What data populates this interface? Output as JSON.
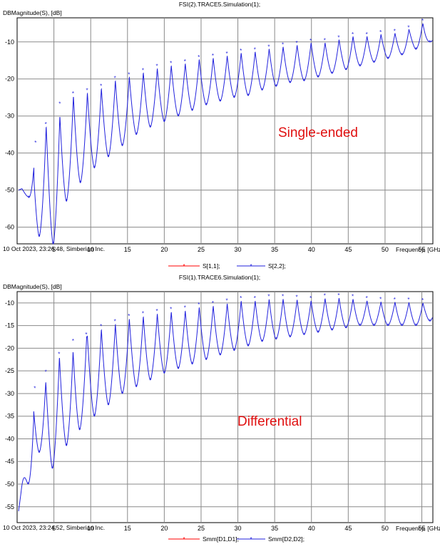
{
  "chart_data": [
    {
      "type": "line",
      "title": "FSI(2).TRACE5.Simulation(1);",
      "ylabel": "DBMagnitude(S), [dB]",
      "xlabel": "Frequency, [GHz]",
      "footer": "10 Oct 2023, 23:26:48, Simberian Inc.",
      "annotation": "Single-ended",
      "xlim": [
        0,
        56.5
      ],
      "ylim": [
        -64.5,
        -3.5
      ],
      "xticks": [
        "5",
        "10",
        "15",
        "20",
        "25",
        "30",
        "35",
        "40",
        "45",
        "50",
        "55"
      ],
      "yticks": [
        "-10",
        "-20",
        "-30",
        "-40",
        "-50",
        "-60"
      ],
      "grid": true,
      "legend_position": "bottom-center",
      "colors": {
        "s11": "#ff0000",
        "s22": "#2222dd"
      },
      "envelope": {
        "x": [
          0.2,
          1.3,
          2.2,
          3.2,
          4.3,
          5.4,
          6.5,
          7.6,
          8.7,
          9.8,
          11,
          13,
          15,
          17.5,
          20,
          22.5,
          25,
          27.5,
          30,
          32.5,
          35,
          37.5,
          40,
          42.5,
          45,
          47.5,
          50,
          52.5,
          55,
          56
        ],
        "values": [
          -50,
          -49,
          -38.5,
          -36,
          -31,
          -27.5,
          -27,
          -24.5,
          -24,
          -23.5,
          -23,
          -20.5,
          -19.5,
          -18,
          -16.5,
          -16,
          -14.5,
          -14.2,
          -13,
          -12.6,
          -11.5,
          -11,
          -10.2,
          -10.2,
          -8.5,
          -8.5,
          -7.8,
          -7.5,
          -4.5,
          -8
        ]
      },
      "dips": {
        "x": [
          1.6,
          3,
          4.9,
          6.7,
          8.6,
          10.5,
          12.4,
          14.3,
          16.2,
          18.1,
          20,
          21.9,
          23.8,
          25.7,
          27.6,
          29.5,
          31.4,
          33.3,
          35.2,
          37.1,
          39,
          40.9,
          42.8,
          44.7,
          46.6,
          48.5,
          50.4,
          52.3,
          54.2,
          56.1
        ],
        "values": [
          -52,
          -62.5,
          -64.5,
          -53,
          -48,
          -44,
          -41,
          -38,
          -35,
          -33,
          -31.5,
          -30,
          -28.5,
          -27,
          -26,
          -25,
          -24.5,
          -23,
          -22,
          -21,
          -20.5,
          -19.5,
          -18.5,
          -17.5,
          -16.5,
          -15.5,
          -14.5,
          -13.5,
          -12,
          -10
        ]
      },
      "series": [
        {
          "name": "S[1,1];",
          "legend": true
        },
        {
          "name": "S[2,2];",
          "legend": true
        }
      ]
    },
    {
      "type": "line",
      "title": "FSI(1).TRACE6.Simulation(1);",
      "ylabel": "DBMagnitude(S), [dB]",
      "xlabel": "Frequency, [GHz]",
      "footer": "10 Oct 2023, 23:24:52, Simberian Inc.",
      "annotation": "Differential",
      "xlim": [
        0,
        56.5
      ],
      "ylim": [
        -58.5,
        -7.5
      ],
      "xticks": [
        "5",
        "10",
        "15",
        "20",
        "25",
        "30",
        "35",
        "40",
        "45",
        "50",
        "55"
      ],
      "yticks": [
        "-10",
        "-15",
        "-20",
        "-25",
        "-30",
        "-35",
        "-40",
        "-45",
        "-50",
        "-55"
      ],
      "grid": true,
      "legend_position": "bottom-center",
      "colors": {
        "smm11": "#ff0000",
        "smm22": "#2222dd"
      },
      "envelope": {
        "x": [
          0.2,
          1.2,
          2.2,
          3.2,
          4.3,
          5.4,
          6.5,
          7.6,
          8.7,
          9.8,
          11,
          13,
          15,
          17.5,
          20,
          22.5,
          25,
          27.5,
          30,
          32.5,
          35,
          37.5,
          40,
          42.5,
          45,
          47.5,
          50,
          52.5,
          55,
          56
        ],
        "values": [
          -56,
          -43.5,
          -29.5,
          -29,
          -24,
          -22,
          -21.5,
          -19,
          -18.5,
          -17,
          -16,
          -14.8,
          -13.5,
          -12.8,
          -12,
          -11.8,
          -10.8,
          -10.5,
          -9.5,
          -9.5,
          -9,
          -9.2,
          -9.5,
          -8.8,
          -9,
          -9.5,
          -9.8,
          -9.8,
          -10,
          -10
        ]
      },
      "dips": {
        "x": [
          1.5,
          3,
          4.8,
          6.7,
          8.5,
          10.5,
          12.4,
          14.3,
          16.2,
          18.1,
          20,
          21.9,
          23.8,
          25.7,
          27.6,
          29.5,
          31.4,
          33.3,
          35.2,
          37.1,
          39,
          40.9,
          42.8,
          44.7,
          46.6,
          48.5,
          50.4,
          52.3,
          54.2,
          56.1
        ],
        "values": [
          -50,
          -43,
          -46.5,
          -41.5,
          -38,
          -35,
          -32.5,
          -30,
          -28.5,
          -27,
          -25.5,
          -24.5,
          -23.5,
          -22.5,
          -21.5,
          -20.5,
          -19.5,
          -18.5,
          -18,
          -17.5,
          -17,
          -16.5,
          -16,
          -15.5,
          -15,
          -15,
          -15,
          -15,
          -15,
          -14
        ]
      },
      "series": [
        {
          "name": "Smm[D1,D1];",
          "legend": true
        },
        {
          "name": "Smm[D2,D2];",
          "legend": true
        }
      ]
    }
  ]
}
